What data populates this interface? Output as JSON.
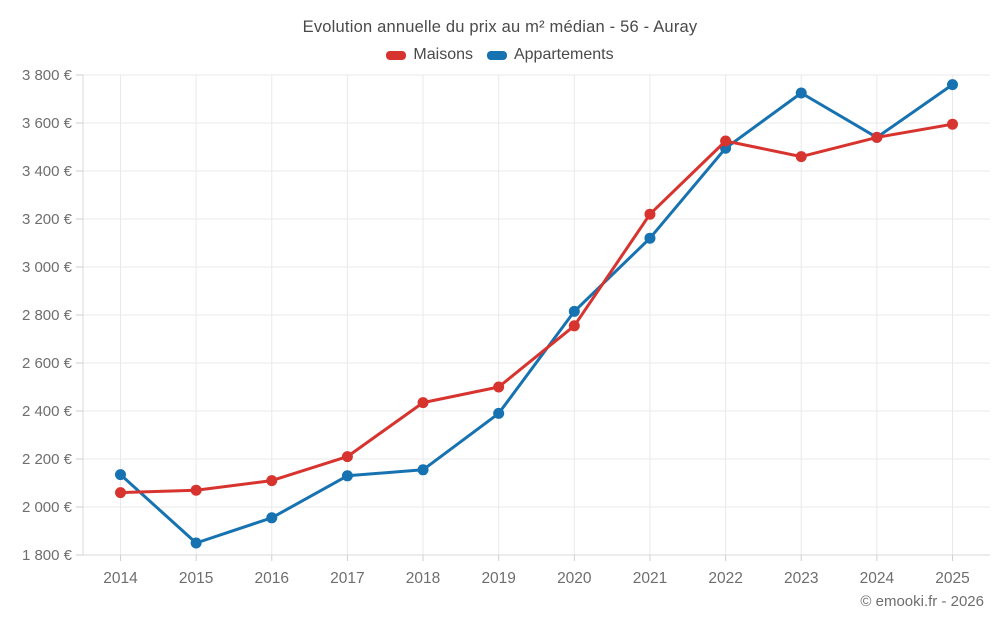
{
  "footer": "© emooki.fr - 2026",
  "chart_data": {
    "type": "line",
    "title": "Evolution annuelle du prix au m² médian - 56 - Auray",
    "x": [
      2014,
      2015,
      2016,
      2017,
      2018,
      2019,
      2020,
      2021,
      2022,
      2023,
      2024,
      2025
    ],
    "xtick_labels": [
      "2014",
      "2015",
      "2016",
      "2017",
      "2018",
      "2019",
      "2020",
      "2021",
      "2022",
      "2023",
      "2024",
      "2025"
    ],
    "series": [
      {
        "name": "Maisons",
        "color": "#d7342f",
        "values": [
          2060,
          2070,
          2110,
          2210,
          2435,
          2500,
          2755,
          3220,
          3525,
          3460,
          3540,
          3595
        ]
      },
      {
        "name": "Appartements",
        "color": "#1672b0",
        "values": [
          2135,
          1850,
          1955,
          2130,
          2155,
          2390,
          2815,
          3120,
          3495,
          3725,
          3540,
          3760
        ]
      }
    ],
    "ylim": [
      1800,
      3800
    ],
    "ytick_values": [
      1800,
      2000,
      2200,
      2400,
      2600,
      2800,
      3000,
      3200,
      3400,
      3600,
      3800
    ],
    "ytick_labels": [
      "1 800 €",
      "2 000 €",
      "2 200 €",
      "2 400 €",
      "2 600 €",
      "2 800 €",
      "3 000 €",
      "3 200 €",
      "3 400 €",
      "3 600 €",
      "3 800 €"
    ],
    "grid": true,
    "legend_position": "top",
    "colors": {
      "grid_line": "#e9e9e9",
      "axis_line": "#d9d9d9",
      "tick_mark": "#cfcfcf",
      "tick_label": "#6e6e6e",
      "title_text": "#4a4a4a"
    }
  }
}
